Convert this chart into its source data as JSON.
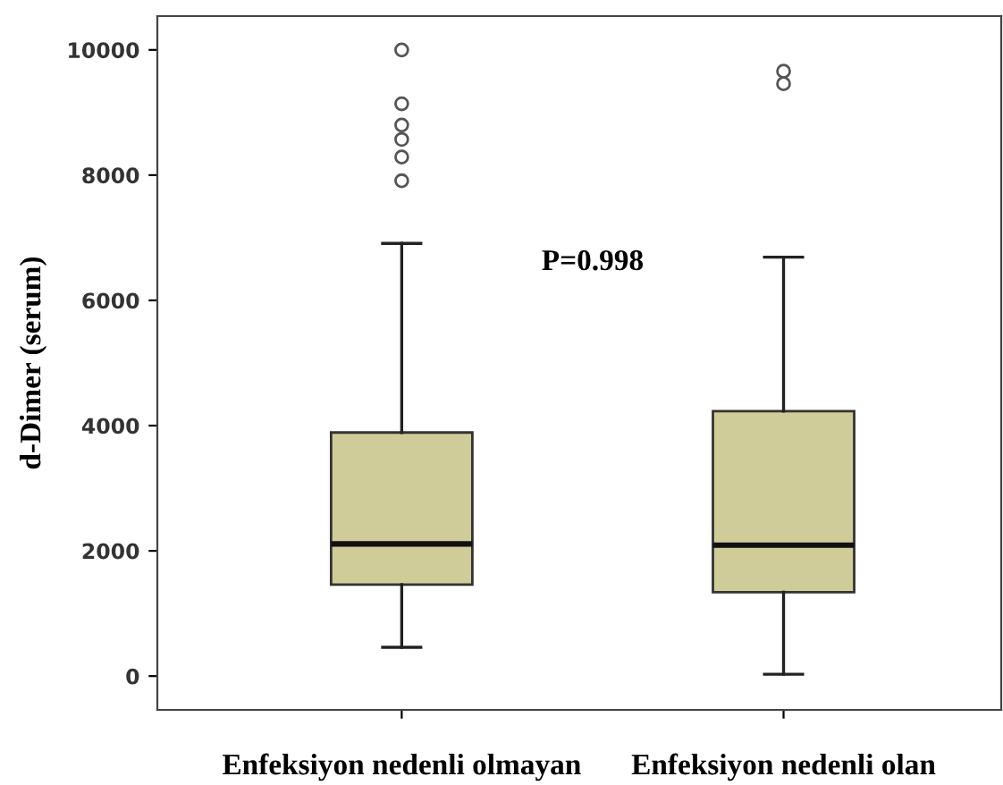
{
  "chart_data": {
    "type": "box",
    "ylabel": "d-Dimer (serum)",
    "categories": [
      "Enfeksiyon nedenli olmayan",
      "Enfeksiyon nedenli olan"
    ],
    "boxes": [
      {
        "low": 460,
        "q1": 1460,
        "median": 2110,
        "q3": 3890,
        "high": 6910,
        "outliers": [
          10000,
          9140,
          8800,
          8570,
          8290,
          7910
        ]
      },
      {
        "low": 30,
        "q1": 1340,
        "median": 2090,
        "q3": 4230,
        "high": 6690,
        "outliers": [
          9660,
          9460
        ]
      }
    ],
    "color": "#d0cc9a",
    "ylim": [
      -540,
      10540
    ],
    "yticks": [
      0,
      2000,
      4000,
      6000,
      8000,
      10000
    ],
    "grid": false,
    "annotations": [
      "P=0.998"
    ]
  }
}
